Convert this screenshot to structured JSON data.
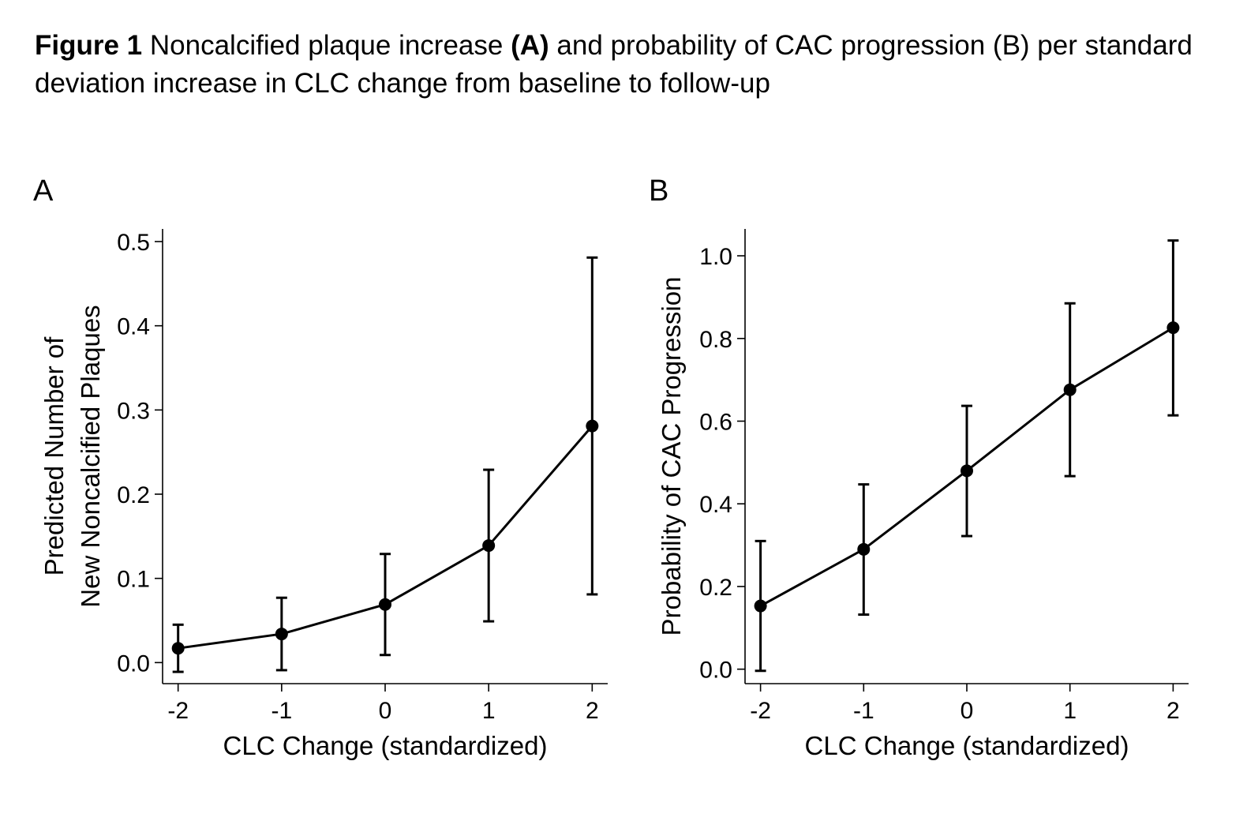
{
  "caption": {
    "figure_num": "Figure 1",
    "text_1": " Noncalcified plaque increase ",
    "bold_a": "(A)",
    "text_2": " and probability of CAC progression (B) per standard deviation increase in CLC change from baseline to follow-up"
  },
  "chart_data": [
    {
      "type": "line",
      "panel_label": "A",
      "title": "",
      "xlabel": "CLC Change (standardized)",
      "ylabel_lines": [
        "Predicted Number of",
        "New Noncalcified Plaques"
      ],
      "x": [
        -2,
        -1,
        0,
        1,
        2
      ],
      "x_ticks": [
        "-2",
        "-1",
        "0",
        "1",
        "2"
      ],
      "y": [
        0.017,
        0.034,
        0.069,
        0.139,
        0.281
      ],
      "ci_low": [
        -0.011,
        -0.009,
        0.009,
        0.049,
        0.081
      ],
      "ci_high": [
        0.045,
        0.077,
        0.129,
        0.229,
        0.481
      ],
      "y_ticks": [
        "0.0",
        "0.1",
        "0.2",
        "0.3",
        "0.4",
        "0.5"
      ],
      "xlim": [
        -2.15,
        2.15
      ],
      "ylim": [
        -0.025,
        0.515
      ],
      "grid": false,
      "color": "#000000"
    },
    {
      "type": "line",
      "panel_label": "B",
      "title": "",
      "xlabel": "CLC Change (standardized)",
      "ylabel_lines": [
        "Probability of CAC Progression"
      ],
      "x": [
        -2,
        -1,
        0,
        1,
        2
      ],
      "x_ticks": [
        "-2",
        "-1",
        "0",
        "1",
        "2"
      ],
      "y": [
        0.153,
        0.29,
        0.48,
        0.676,
        0.826
      ],
      "ci_low": [
        -0.004,
        0.132,
        0.322,
        0.467,
        0.614
      ],
      "ci_high": [
        0.31,
        0.447,
        0.637,
        0.885,
        1.037
      ],
      "y_ticks": [
        "0.0",
        "0.2",
        "0.4",
        "0.6",
        "0.8",
        "1.0"
      ],
      "xlim": [
        -2.15,
        2.15
      ],
      "ylim": [
        -0.035,
        1.065
      ],
      "grid": false,
      "color": "#000000"
    }
  ]
}
